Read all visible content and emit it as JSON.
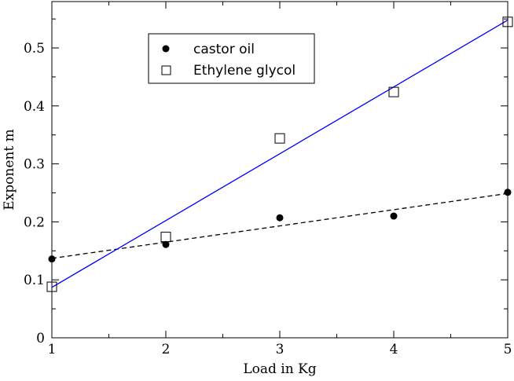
{
  "chart_data": {
    "type": "scatter",
    "xlabel": "Load in Kg",
    "ylabel": "Exponent m",
    "xlim": [
      1,
      5
    ],
    "ylim": [
      0,
      0.58
    ],
    "x_ticks": [
      1,
      2,
      3,
      4,
      5
    ],
    "x_tick_labels": [
      "1",
      "2",
      "3",
      "4",
      "5"
    ],
    "y_ticks": [
      0,
      0.1,
      0.2,
      0.3,
      0.4,
      0.5
    ],
    "y_tick_labels": [
      "0",
      "0.1",
      "0.2",
      "0.3",
      "0.4",
      "0.5"
    ],
    "grid": false,
    "legend_position": "top-left",
    "series": [
      {
        "name": "castor oil",
        "marker": "filled-circle",
        "color": "#000000",
        "x": [
          1,
          2,
          3,
          4,
          5
        ],
        "y": [
          0.136,
          0.161,
          0.207,
          0.21,
          0.251
        ],
        "fit_line": {
          "style": "dashed",
          "color": "#000000",
          "x": [
            1,
            5
          ],
          "y": [
            0.137,
            0.249
          ]
        }
      },
      {
        "name": "Ethylene glycol",
        "marker": "open-square",
        "color": "#000000",
        "x": [
          1,
          2,
          3,
          4,
          5
        ],
        "y": [
          0.088,
          0.174,
          0.344,
          0.424,
          0.545
        ],
        "fit_line": {
          "style": "solid",
          "color": "#0000ff",
          "x": [
            1,
            5
          ],
          "y": [
            0.087,
            0.548
          ]
        }
      }
    ]
  }
}
